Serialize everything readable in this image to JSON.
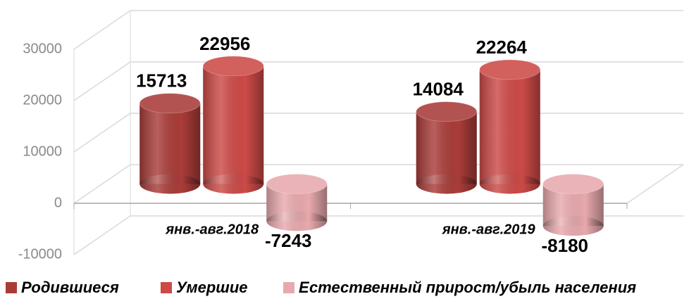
{
  "chart_data": {
    "type": "bar3d",
    "categories": [
      "янв.-авг.2018",
      "янв.-авг.2019"
    ],
    "series": [
      {
        "name": "Родившиеся",
        "color": "#a93c39",
        "values": [
          15713,
          14084
        ]
      },
      {
        "name": "Умершие",
        "color": "#cc4a47",
        "values": [
          22956,
          22264
        ]
      },
      {
        "name": "Естественный прирост/убыль населения",
        "color": "#e8a9ad",
        "values": [
          -7243,
          -8180
        ]
      }
    ],
    "ylim": [
      -10000,
      30000
    ],
    "yticks": [
      -10000,
      0,
      10000,
      20000,
      30000
    ],
    "grid": true
  }
}
